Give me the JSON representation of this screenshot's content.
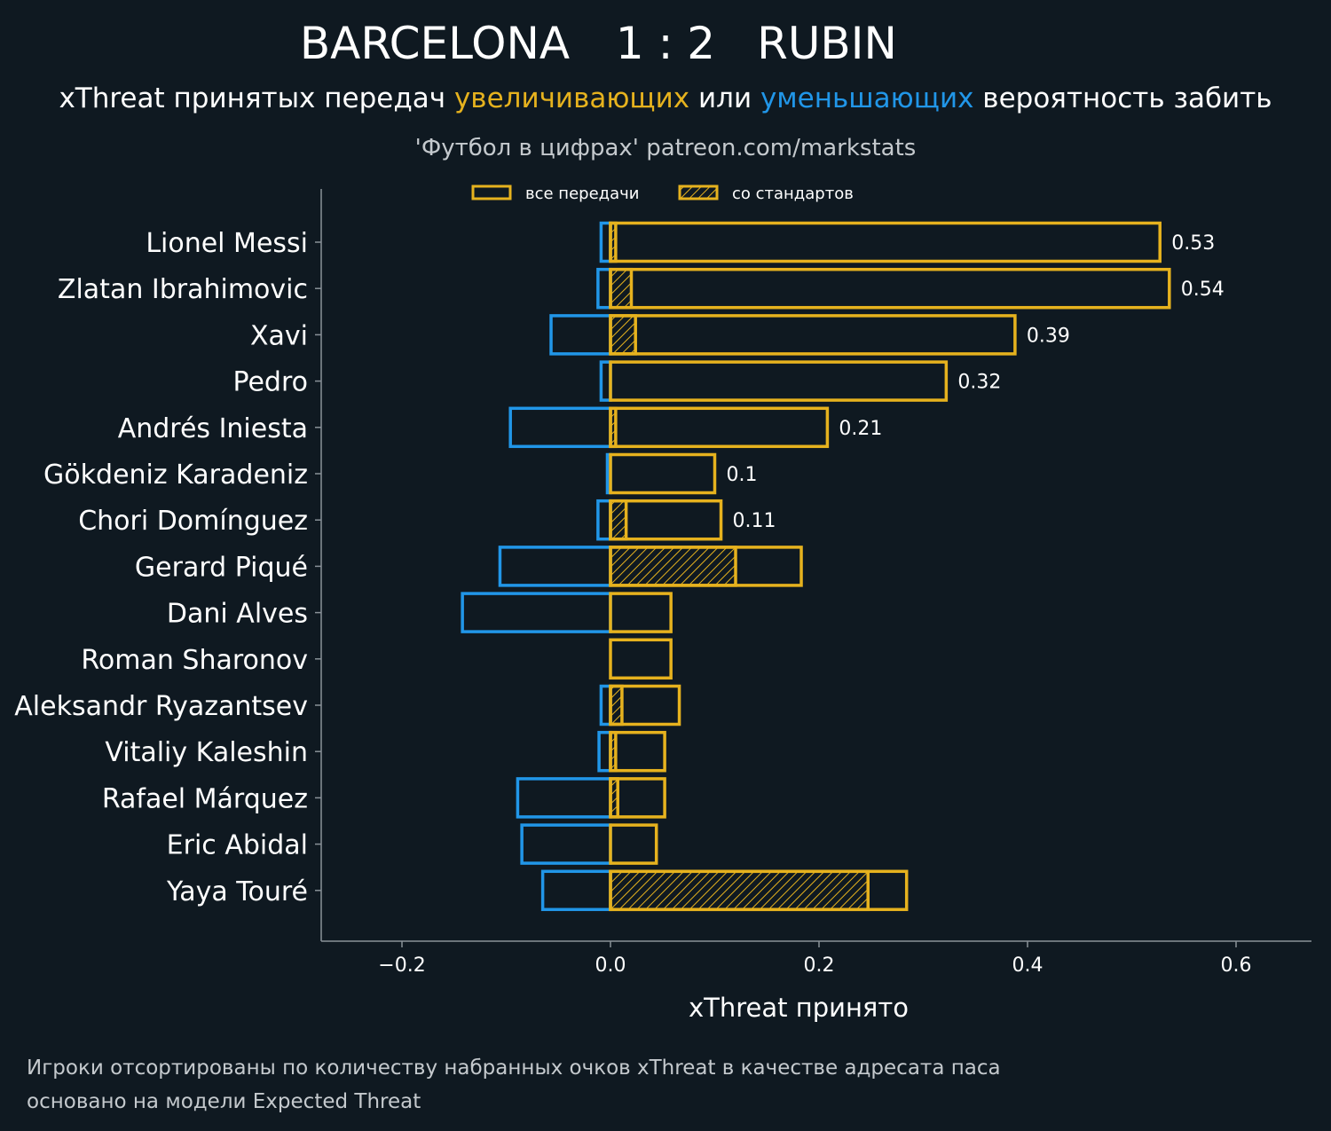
{
  "header": {
    "team_home": "BARCELONA",
    "score": "1 : 2",
    "team_away": "RUBIN",
    "subtitle_parts": [
      {
        "text": "xThreat принятых передач ",
        "color": "#ffffff"
      },
      {
        "text": "увеличивающих",
        "color": "#e6b21e"
      },
      {
        "text": " или ",
        "color": "#ffffff"
      },
      {
        "text": "уменьшающих",
        "color": "#2196e8"
      },
      {
        "text": " вероятность забить",
        "color": "#ffffff"
      }
    ],
    "credit": "'Футбол в цифрах' patreon.com/markstats"
  },
  "legend": {
    "all_passes": "все передачи",
    "set_pieces": "со стандартов"
  },
  "footnote": {
    "line1": "Игроки отсортированы по количеству набранных очков xThreat в качестве адресата паса",
    "line2": "основано на модели Expected Threat"
  },
  "colors": {
    "background": "#0f1921",
    "positive": "#e6b21e",
    "negative": "#2196e8",
    "axis": "#8a9299"
  },
  "chart_data": {
    "type": "bar",
    "orientation": "horizontal",
    "xlabel": "xThreat принято",
    "xlim": [
      -0.28,
      0.67
    ],
    "xticks": [
      -0.2,
      0.0,
      0.2,
      0.4,
      0.6
    ],
    "xtick_labels": [
      "−0.2",
      "0.0",
      "0.2",
      "0.4",
      "0.6"
    ],
    "categories": [
      "Lionel Messi",
      "Zlatan Ibrahimovic",
      "Xavi",
      "Pedro",
      "Andrés Iniesta",
      "Gökdeniz Karadeniz",
      "Chori Domínguez",
      "Gerard Piqué",
      "Dani Alves",
      "Roman Sharonov",
      "Aleksandr Ryazantsev",
      "Vitaliy Kaleshin",
      "Rafael Márquez",
      "Eric Abidal",
      "Yaya Touré"
    ],
    "series": [
      {
        "name": "все передачи",
        "values": [
          0.527,
          0.536,
          0.388,
          0.322,
          0.208,
          0.1,
          0.106,
          0.183,
          0.058,
          0.058,
          0.066,
          0.052,
          0.052,
          0.044,
          0.284
        ]
      },
      {
        "values": [
          -0.009,
          -0.012,
          -0.057,
          -0.009,
          -0.096,
          -0.003,
          -0.012,
          -0.106,
          -0.142,
          0.0,
          -0.009,
          -0.011,
          -0.089,
          -0.085,
          -0.065
        ]
      },
      {
        "name": "со стандартов",
        "values": [
          0.005,
          0.02,
          0.024,
          0.0,
          0.005,
          0.0,
          0.015,
          0.12,
          0.0,
          0.0,
          0.011,
          0.005,
          0.007,
          0.0,
          0.247
        ]
      }
    ],
    "value_labels": [
      "0.53",
      "0.54",
      "0.39",
      "0.32",
      "0.21",
      "0.1",
      "0.11",
      "",
      "",
      "",
      "",
      "",
      "",
      "",
      ""
    ],
    "legend_position": "top-center",
    "grid": false
  }
}
